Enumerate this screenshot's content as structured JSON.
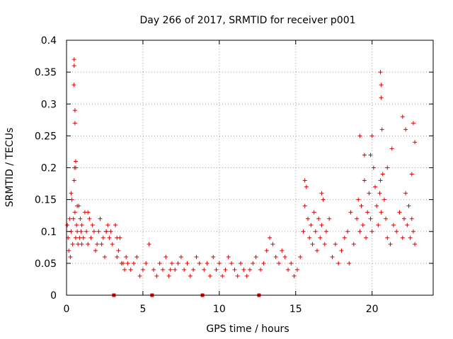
{
  "chart_data": {
    "type": "scatter",
    "title": "Day 266 of 2017, SRMTID for receiver p001",
    "xlabel": "GPS time / hours",
    "ylabel": "SRMTID / TECUs",
    "xlim": [
      0,
      24
    ],
    "ylim": [
      0,
      0.4
    ],
    "xticks": [
      0,
      5,
      10,
      15,
      20
    ],
    "xtick_labels": [
      "0",
      "5",
      "10",
      "15",
      "20"
    ],
    "yticks": [
      0,
      0.05,
      0.1,
      0.15,
      0.2,
      0.25,
      0.3,
      0.35,
      0.4
    ],
    "ytick_labels": [
      "0",
      "0.05",
      "0.1",
      "0.15",
      "0.2",
      "0.25",
      "0.3",
      "0.35",
      "0.4"
    ],
    "grid": true,
    "marker": "+",
    "color": "#e00000",
    "gap_markers_hours": [
      3.1,
      5.6,
      8.9,
      12.6
    ],
    "series": [
      {
        "name": "SRMTID",
        "x": [
          0.05,
          0.1,
          0.15,
          0.2,
          0.25,
          0.3,
          0.35,
          0.4,
          0.45,
          0.5,
          0.52,
          0.55,
          0.6,
          0.65,
          0.7,
          0.75,
          0.8,
          0.85,
          0.9,
          0.95,
          1.0,
          1.1,
          1.2,
          1.3,
          1.4,
          1.5,
          1.6,
          1.7,
          1.8,
          1.9,
          2.0,
          2.1,
          2.2,
          2.3,
          2.4,
          2.5,
          2.6,
          2.7,
          2.8,
          2.9,
          3.0,
          3.2,
          3.3,
          3.4,
          3.5,
          3.6,
          3.7,
          3.8,
          3.9,
          4.0,
          4.2,
          4.4,
          4.6,
          4.8,
          5.0,
          5.2,
          5.4,
          5.7,
          5.9,
          6.1,
          6.3,
          6.5,
          6.7,
          6.9,
          7.1,
          7.3,
          7.5,
          7.7,
          7.9,
          8.1,
          8.3,
          8.5,
          8.7,
          9.0,
          9.2,
          9.4,
          9.6,
          9.8,
          10.0,
          10.2,
          10.4,
          10.6,
          10.8,
          11.0,
          11.2,
          11.4,
          11.6,
          11.8,
          12.0,
          12.2,
          12.4,
          12.7,
          12.9,
          13.1,
          13.3,
          13.5,
          13.7,
          13.9,
          14.1,
          14.3,
          14.5,
          14.7,
          14.9,
          15.1,
          15.3,
          15.5,
          15.6,
          15.7,
          15.8,
          15.9,
          16.0,
          16.1,
          16.2,
          16.3,
          16.4,
          16.5,
          16.6,
          16.7,
          16.8,
          16.9,
          17.0,
          17.2,
          17.4,
          17.6,
          17.8,
          18.0,
          18.2,
          18.4,
          18.6,
          18.8,
          19.0,
          19.1,
          19.2,
          19.3,
          19.4,
          19.5,
          19.6,
          19.7,
          19.8,
          19.9,
          20.0,
          20.1,
          20.2,
          20.3,
          20.4,
          20.5,
          20.55,
          20.6,
          20.7,
          20.8,
          20.9,
          21.0,
          21.2,
          21.4,
          21.6,
          21.8,
          22.0,
          22.1,
          22.2,
          22.3,
          22.4,
          22.5,
          22.6,
          22.7,
          22.8,
          0.48,
          0.5,
          0.5,
          0.55,
          0.55,
          0.6,
          20.55,
          20.6,
          20.65,
          20.6,
          22.0,
          22.2,
          22.7,
          22.8,
          19.9,
          20.0,
          0.3,
          0.6,
          0.7,
          1.0,
          1.4,
          2.6,
          3.3,
          6.8,
          15.6,
          16.7,
          18.5,
          19.2,
          19.5,
          21.0,
          21.3,
          22.6
        ],
        "y": [
          0.11,
          0.09,
          0.07,
          0.12,
          0.06,
          0.1,
          0.15,
          0.08,
          0.12,
          0.18,
          0.2,
          0.13,
          0.09,
          0.11,
          0.1,
          0.08,
          0.14,
          0.09,
          0.12,
          0.1,
          0.11,
          0.09,
          0.13,
          0.1,
          0.08,
          0.12,
          0.09,
          0.11,
          0.1,
          0.07,
          0.08,
          0.1,
          0.12,
          0.08,
          0.09,
          0.06,
          0.1,
          0.11,
          0.09,
          0.1,
          0.08,
          0.11,
          0.06,
          0.07,
          0.09,
          0.05,
          0.05,
          0.04,
          0.06,
          0.05,
          0.04,
          0.05,
          0.06,
          0.03,
          0.04,
          0.05,
          0.08,
          0.04,
          0.03,
          0.05,
          0.04,
          0.06,
          0.03,
          0.05,
          0.04,
          0.05,
          0.06,
          0.04,
          0.05,
          0.03,
          0.04,
          0.06,
          0.05,
          0.04,
          0.05,
          0.03,
          0.06,
          0.04,
          0.05,
          0.03,
          0.04,
          0.06,
          0.05,
          0.04,
          0.03,
          0.05,
          0.04,
          0.03,
          0.04,
          0.05,
          0.06,
          0.04,
          0.05,
          0.07,
          0.09,
          0.08,
          0.06,
          0.05,
          0.07,
          0.06,
          0.04,
          0.05,
          0.03,
          0.04,
          0.06,
          0.1,
          0.14,
          0.17,
          0.12,
          0.09,
          0.11,
          0.08,
          0.13,
          0.1,
          0.07,
          0.12,
          0.09,
          0.11,
          0.15,
          0.08,
          0.1,
          0.12,
          0.06,
          0.08,
          0.05,
          0.07,
          0.09,
          0.1,
          0.13,
          0.08,
          0.12,
          0.15,
          0.1,
          0.14,
          0.11,
          0.18,
          0.09,
          0.13,
          0.16,
          0.12,
          0.1,
          0.2,
          0.17,
          0.14,
          0.11,
          0.16,
          0.18,
          0.13,
          0.19,
          0.15,
          0.12,
          0.09,
          0.08,
          0.11,
          0.1,
          0.13,
          0.09,
          0.12,
          0.16,
          0.11,
          0.14,
          0.09,
          0.12,
          0.1,
          0.08,
          0.33,
          0.37,
          0.36,
          0.29,
          0.27,
          0.21,
          0.35,
          0.31,
          0.26,
          0.33,
          0.28,
          0.26,
          0.27,
          0.24,
          0.22,
          0.25,
          0.16,
          0.2,
          0.14,
          0.08,
          0.13,
          0.1,
          0.09,
          0.04,
          0.18,
          0.16,
          0.05,
          0.25,
          0.22,
          0.2,
          0.23,
          0.19
        ]
      }
    ]
  }
}
